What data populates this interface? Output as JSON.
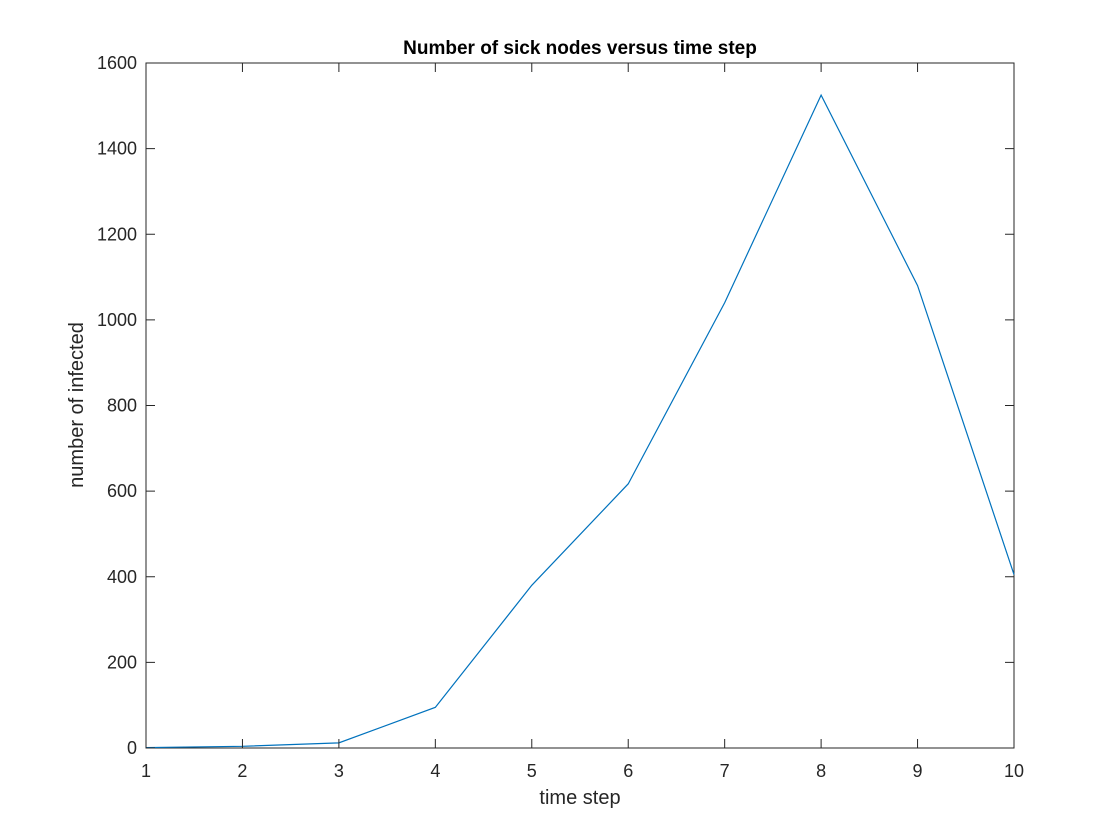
{
  "chart_data": {
    "type": "line",
    "title": "Number of sick nodes versus time step",
    "xlabel": "time step",
    "ylabel": "number of infected",
    "xlim": [
      1,
      10
    ],
    "ylim": [
      0,
      1600
    ],
    "xticks": [
      1,
      2,
      3,
      4,
      5,
      6,
      7,
      8,
      9,
      10
    ],
    "yticks": [
      0,
      200,
      400,
      600,
      800,
      1000,
      1200,
      1400,
      1600
    ],
    "grid": false,
    "box": true,
    "series": [
      {
        "color": "#0072bd",
        "x": [
          1,
          2,
          3,
          4,
          5,
          6,
          7,
          8,
          9,
          10
        ],
        "y": [
          1,
          4,
          12,
          95,
          380,
          617,
          1040,
          1525,
          1080,
          405
        ]
      }
    ]
  },
  "colors": {
    "axis": "#262626",
    "background": "#ffffff"
  }
}
